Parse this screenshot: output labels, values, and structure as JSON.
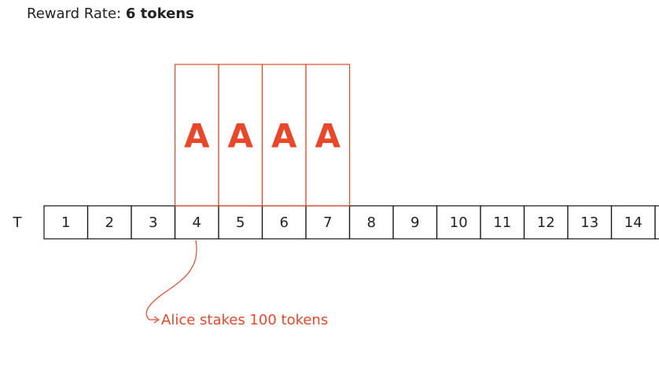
{
  "header": {
    "label": "Reward Rate:",
    "value": "6 tokens"
  },
  "axis_label": "T",
  "cells": [
    "1",
    "2",
    "3",
    "4",
    "5",
    "6",
    "7",
    "8",
    "9",
    "10",
    "11",
    "12",
    "13",
    "14"
  ],
  "blocks": [
    "A",
    "A",
    "A",
    "A"
  ],
  "annotation": "Alice stakes 100 tokens"
}
